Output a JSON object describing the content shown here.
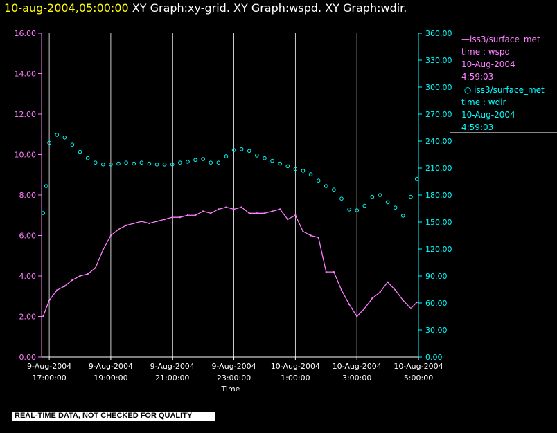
{
  "header": {
    "timestamp": "10-aug-2004,05:00:00",
    "graphs": "XY Graph:xy-grid.  XY Graph:wspd.  XY Graph:wdir."
  },
  "legend": {
    "wspd": {
      "source": "iss3/surface_met",
      "var": "time : wspd",
      "date": "10-Aug-2004",
      "time": "4:59:03"
    },
    "wdir": {
      "source": "iss3/surface_met",
      "var": "time : wdir",
      "date": "10-Aug-2004",
      "time": "4:59:03"
    }
  },
  "disclaimer": "REAL-TIME DATA, NOT CHECKED FOR QUALITY",
  "colors": {
    "wspd": "#ff80ff",
    "wdir": "#00ffff",
    "grid": "#ffffff",
    "background": "#000000"
  },
  "chart_data": {
    "type": "line",
    "xlabel": "Time",
    "xlim": [
      16.75,
      29.0
    ],
    "x_tick_labels": [
      {
        "x": 17,
        "date": "9-Aug-2004",
        "time": "17:00:00"
      },
      {
        "x": 19,
        "date": "9-Aug-2004",
        "time": "19:00:00"
      },
      {
        "x": 21,
        "date": "9-Aug-2004",
        "time": "21:00:00"
      },
      {
        "x": 23,
        "date": "9-Aug-2004",
        "time": "23:00:00"
      },
      {
        "x": 25,
        "date": "10-Aug-2004",
        "time": "1:00:00"
      },
      {
        "x": 27,
        "date": "10-Aug-2004",
        "time": "3:00:00"
      },
      {
        "x": 29,
        "date": "10-Aug-2004",
        "time": "5:00:00"
      }
    ],
    "y_left": {
      "ticks": [
        "0.00",
        "2.00",
        "4.00",
        "6.00",
        "8.00",
        "10.00",
        "12.00",
        "14.00",
        "16.00"
      ],
      "ylim": [
        0,
        16
      ]
    },
    "y_right": {
      "ticks": [
        "0.00",
        "30.00",
        "60.00",
        "90.00",
        "120.00",
        "150.00",
        "180.00",
        "210.00",
        "240.00",
        "270.00",
        "300.00",
        "330.00",
        "360.00"
      ],
      "ylim": [
        0,
        360
      ]
    },
    "vertical_grid": true,
    "series": [
      {
        "name": "iss3/surface_met time : wspd",
        "style": "line",
        "axis": "left",
        "x": [
          16.8,
          17.0,
          17.25,
          17.5,
          17.75,
          18.0,
          18.25,
          18.5,
          18.75,
          19.0,
          19.25,
          19.5,
          19.75,
          20.0,
          20.25,
          20.5,
          20.75,
          21.0,
          21.25,
          21.5,
          21.75,
          22.0,
          22.25,
          22.5,
          22.75,
          23.0,
          23.25,
          23.5,
          23.75,
          24.0,
          24.25,
          24.5,
          24.75,
          25.0,
          25.25,
          25.5,
          25.75,
          26.0,
          26.25,
          26.5,
          26.75,
          27.0,
          27.25,
          27.5,
          27.75,
          28.0,
          28.25,
          28.5,
          28.75,
          28.95
        ],
        "y": [
          2.0,
          2.8,
          3.3,
          3.5,
          3.8,
          4.0,
          4.1,
          4.4,
          5.3,
          6.0,
          6.3,
          6.5,
          6.6,
          6.7,
          6.6,
          6.7,
          6.8,
          6.9,
          6.9,
          7.0,
          7.0,
          7.2,
          7.1,
          7.3,
          7.4,
          7.3,
          7.4,
          7.1,
          7.1,
          7.1,
          7.2,
          7.3,
          6.8,
          7.0,
          6.2,
          6.0,
          5.9,
          4.2,
          4.2,
          3.3,
          2.6,
          2.0,
          2.4,
          2.9,
          3.2,
          3.7,
          3.3,
          2.8,
          2.4,
          2.7
        ]
      },
      {
        "name": "iss3/surface_met time : wdir",
        "style": "points",
        "axis": "right",
        "x": [
          16.8,
          16.9,
          17.0,
          17.25,
          17.5,
          17.75,
          18.0,
          18.25,
          18.5,
          18.75,
          19.0,
          19.25,
          19.5,
          19.75,
          20.0,
          20.25,
          20.5,
          20.75,
          21.0,
          21.25,
          21.5,
          21.75,
          22.0,
          22.25,
          22.5,
          22.75,
          23.0,
          23.25,
          23.5,
          23.75,
          24.0,
          24.25,
          24.5,
          24.75,
          25.0,
          25.25,
          25.5,
          25.75,
          26.0,
          26.25,
          26.5,
          26.75,
          27.0,
          27.25,
          27.5,
          27.75,
          28.0,
          28.25,
          28.5,
          28.75,
          28.95
        ],
        "y": [
          160,
          190,
          238,
          247,
          244,
          236,
          228,
          221,
          216,
          214,
          214,
          215,
          216,
          215,
          216,
          215,
          214,
          214,
          214,
          216,
          217,
          219,
          220,
          216,
          216,
          223,
          230,
          231,
          229,
          224,
          221,
          218,
          215,
          212,
          209,
          207,
          203,
          196,
          190,
          186,
          176,
          164,
          163,
          168,
          178,
          180,
          172,
          166,
          157,
          178,
          198
        ]
      }
    ]
  }
}
